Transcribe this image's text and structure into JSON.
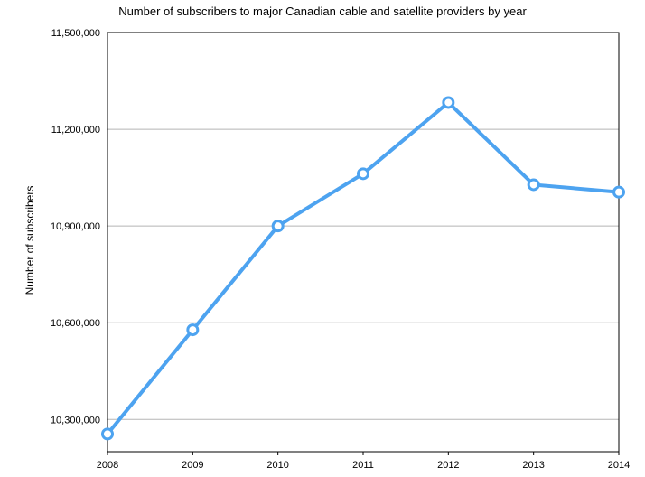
{
  "chart_data": {
    "type": "line",
    "title": "Number of subscribers to major Canadian cable and satellite providers by year",
    "xlabel": "",
    "ylabel": "Number of subscribers",
    "x": [
      "2008",
      "2009",
      "2010",
      "2011",
      "2012",
      "2013",
      "2014"
    ],
    "series": [
      {
        "values": [
          10255000,
          10578000,
          10900000,
          11062000,
          11283000,
          11028000,
          11005000
        ],
        "color": "#4da3f0"
      }
    ],
    "ylim": [
      10200000,
      11500000
    ],
    "yticks": [
      10300000,
      10600000,
      10900000,
      11200000,
      11500000
    ],
    "ytick_labels": [
      "10,300,000",
      "10,600,000",
      "10,900,000",
      "11,200,000",
      "11,500,000"
    ],
    "grid": true,
    "legend": "none"
  }
}
